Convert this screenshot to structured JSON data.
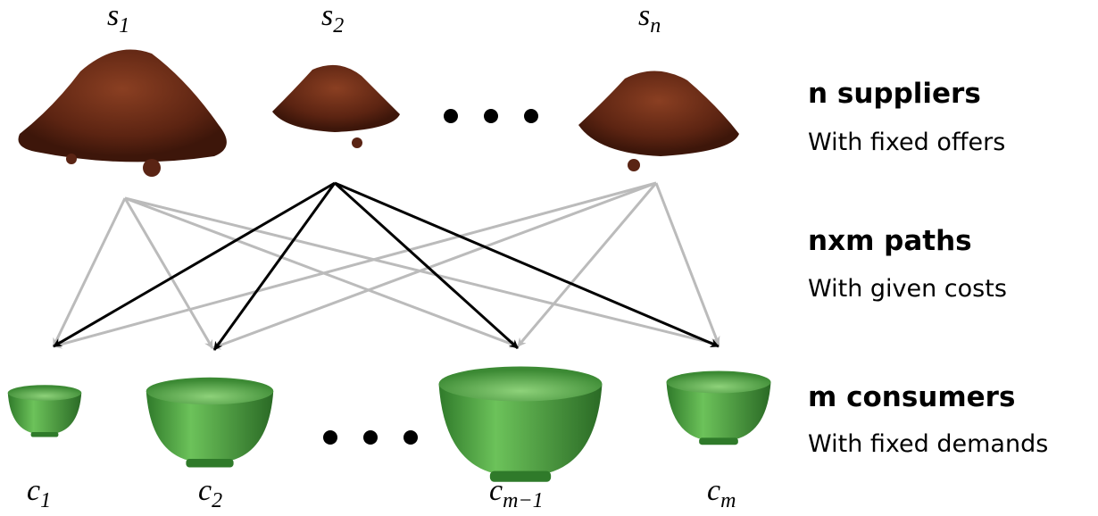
{
  "suppliers": [
    {
      "symbol": "s",
      "index": "1"
    },
    {
      "symbol": "s",
      "index": "2"
    },
    {
      "symbol": "s",
      "index": "n"
    }
  ],
  "consumers": [
    {
      "symbol": "c",
      "index": "1"
    },
    {
      "symbol": "c",
      "index": "2"
    },
    {
      "symbol": "c",
      "index": "m−1"
    },
    {
      "symbol": "c",
      "index": "m"
    }
  ],
  "legend": [
    {
      "title": "n suppliers",
      "subtitle": "With fixed offers"
    },
    {
      "title": "nxm paths",
      "subtitle": "With given costs"
    },
    {
      "title": "m consumers",
      "subtitle": "With fixed demands"
    }
  ]
}
